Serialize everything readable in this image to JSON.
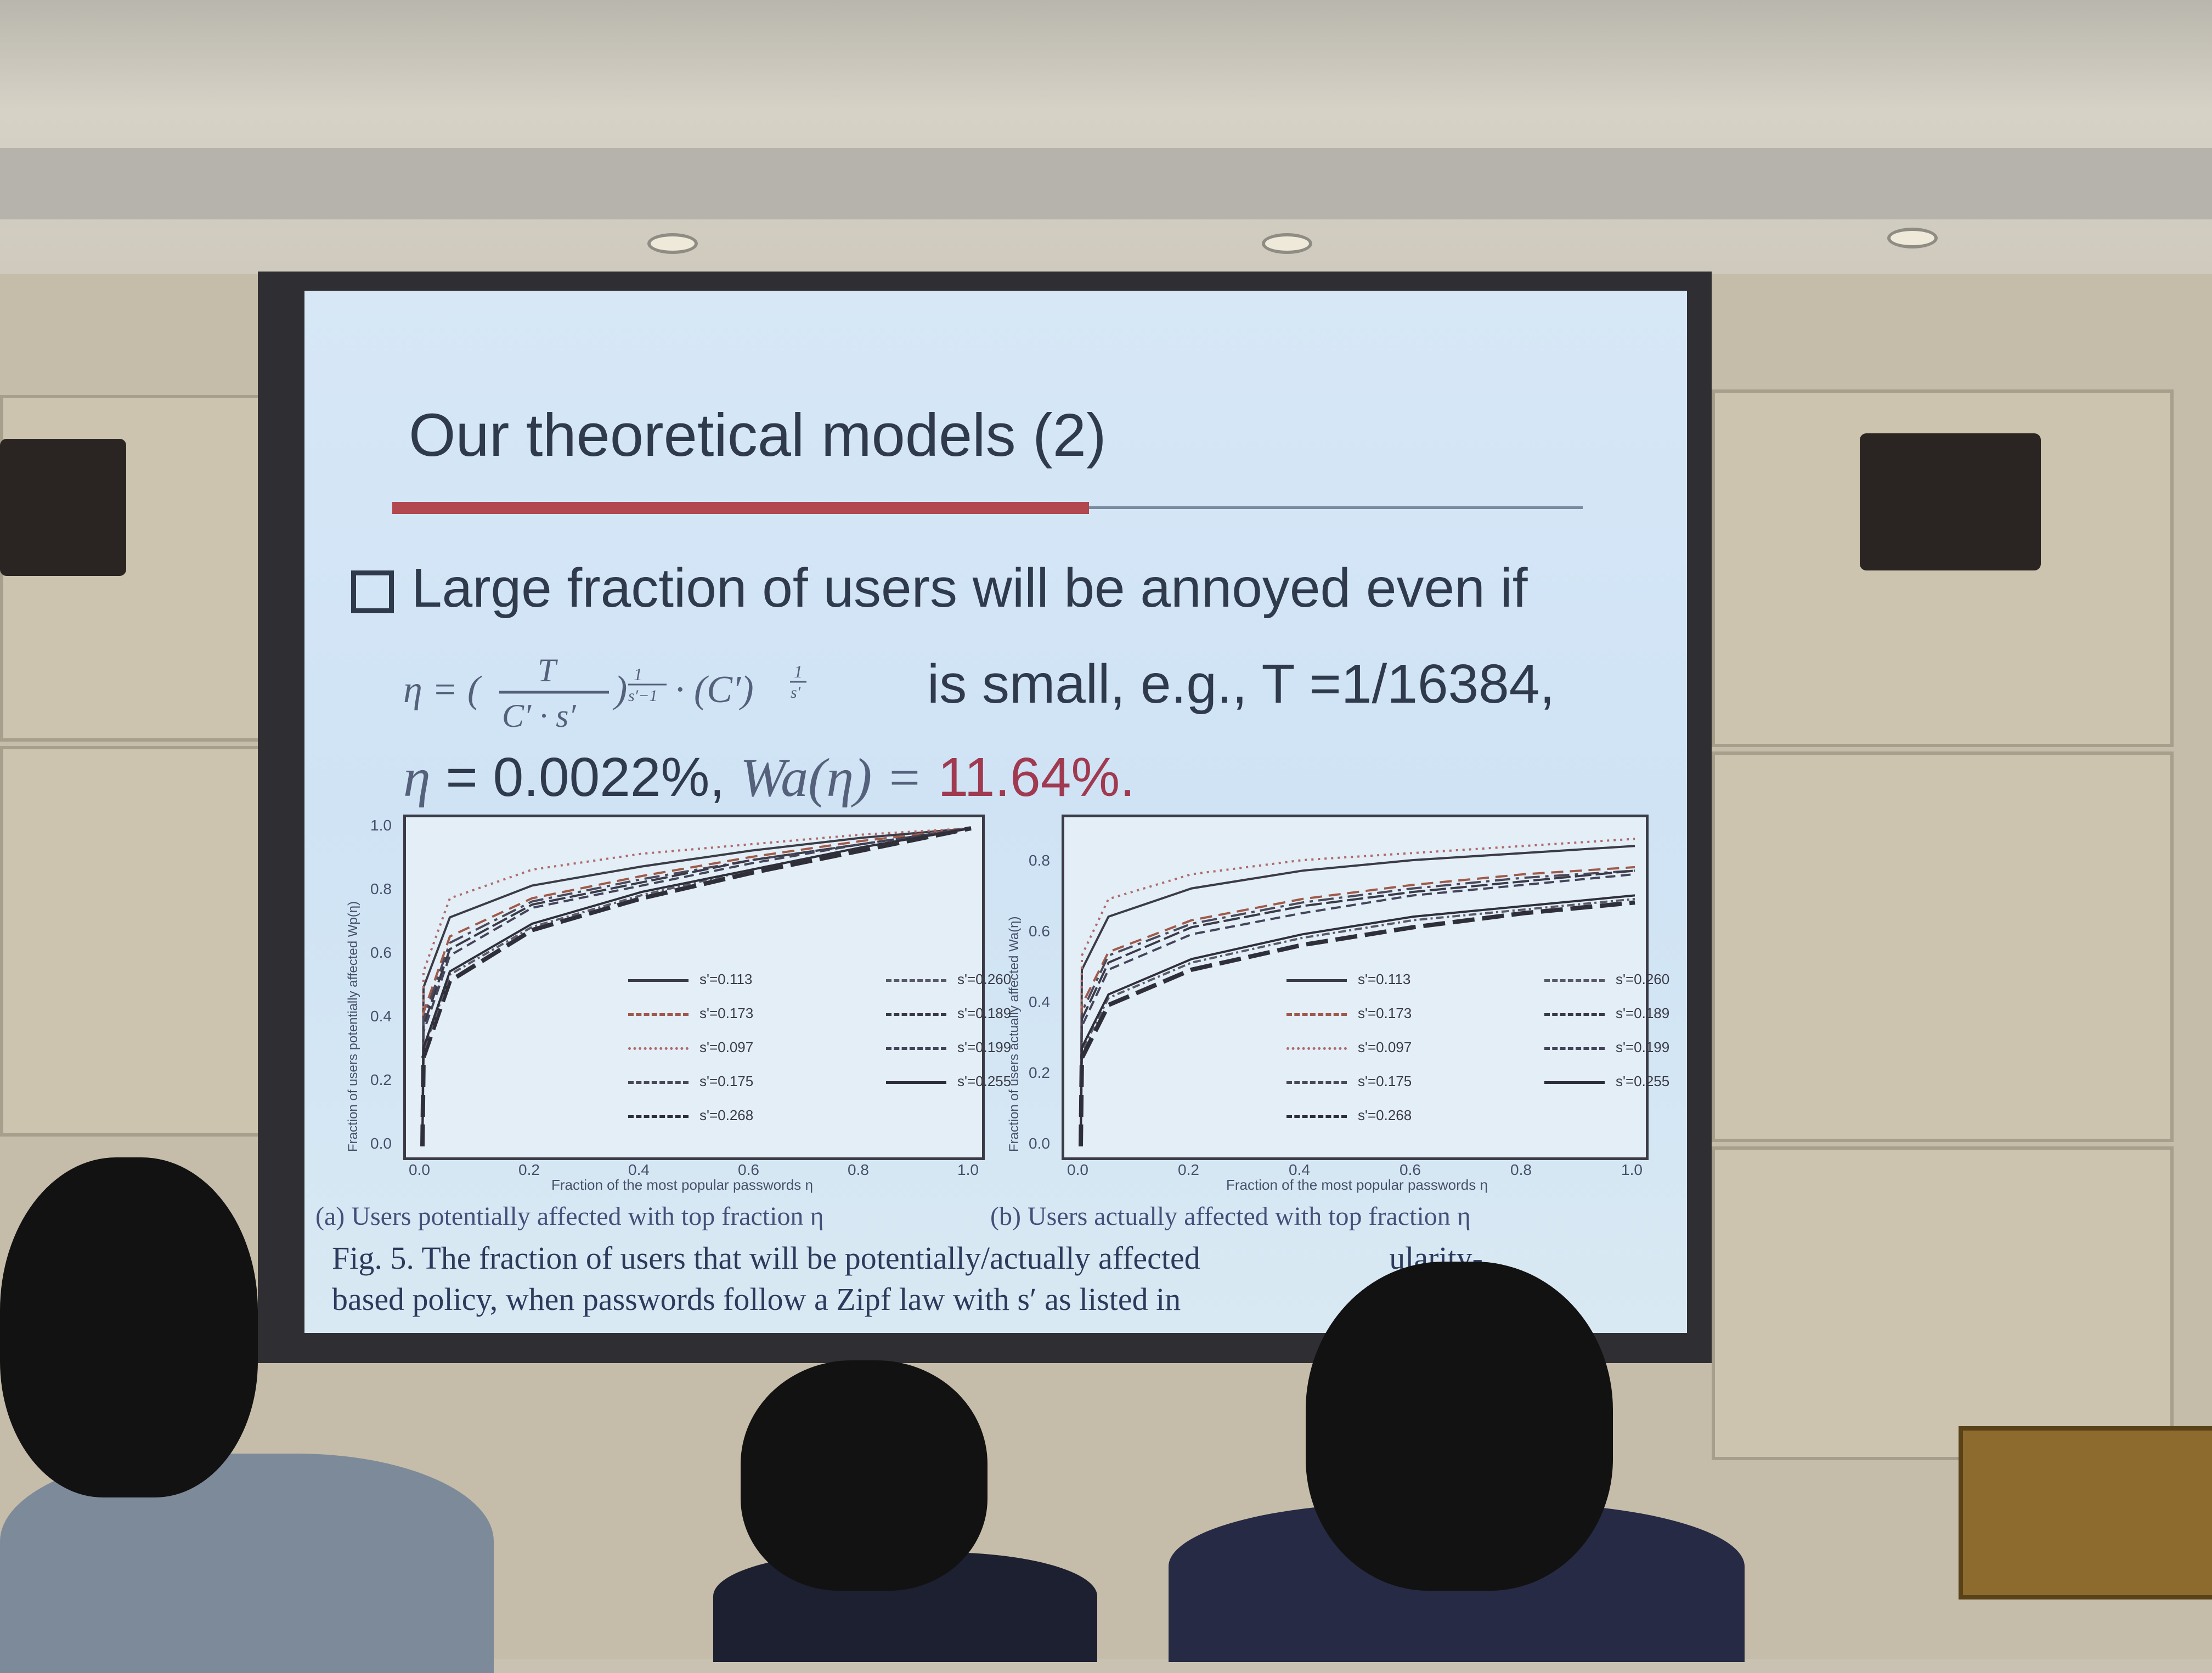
{
  "slide": {
    "title": "Our theoretical models (2)",
    "bullet": "Large fraction of users will be annoyed even if",
    "formula": "η = (T / (C′ · s′))^(1/(s′−1)) · (C′)^(1/s′)",
    "line2": "is small, e.g., T =1/16384,",
    "eta_label": "η",
    "eta_value": "= 0.0022%,",
    "wa_label": "Wa(η) =",
    "wa_value": "11.64%."
  },
  "chart_data": [
    {
      "type": "line",
      "title": "",
      "xlabel": "Fraction of the most popular passwords η",
      "ylabel": "Fraction of users potentially affected Wp(η)",
      "xlim": [
        0,
        1
      ],
      "ylim": [
        0,
        1
      ],
      "x_ticks": [
        "0.0",
        "0.2",
        "0.4",
        "0.6",
        "0.8",
        "1.0"
      ],
      "y_ticks": [
        "0.0",
        "0.2",
        "0.4",
        "0.6",
        "0.8",
        "1.0"
      ],
      "legend_position": "bottom-right",
      "series": [
        {
          "name": "s'=0.113",
          "x": [
            0,
            0.002,
            0.05,
            0.2,
            0.4,
            0.6,
            0.8,
            1.0
          ],
          "values": [
            0,
            0.5,
            0.72,
            0.82,
            0.88,
            0.93,
            0.97,
            1.0
          ]
        },
        {
          "name": "s'=0.173",
          "x": [
            0,
            0.002,
            0.05,
            0.2,
            0.4,
            0.6,
            0.8,
            1.0
          ],
          "values": [
            0,
            0.42,
            0.66,
            0.78,
            0.85,
            0.91,
            0.96,
            1.0
          ]
        },
        {
          "name": "s'=0.097",
          "x": [
            0,
            0.002,
            0.05,
            0.2,
            0.4,
            0.6,
            0.8,
            1.0
          ],
          "values": [
            0,
            0.55,
            0.78,
            0.87,
            0.92,
            0.95,
            0.98,
            1.0
          ]
        },
        {
          "name": "s'=0.175",
          "x": [
            0,
            0.002,
            0.05,
            0.2,
            0.4,
            0.6,
            0.8,
            1.0
          ],
          "values": [
            0,
            0.4,
            0.64,
            0.77,
            0.84,
            0.9,
            0.95,
            1.0
          ]
        },
        {
          "name": "s'=0.268",
          "x": [
            0,
            0.002,
            0.05,
            0.2,
            0.4,
            0.6,
            0.8,
            1.0
          ],
          "values": [
            0,
            0.28,
            0.52,
            0.68,
            0.78,
            0.86,
            0.93,
            1.0
          ]
        },
        {
          "name": "s'=0.260",
          "x": [
            0,
            0.002,
            0.05,
            0.2,
            0.4,
            0.6,
            0.8,
            1.0
          ],
          "values": [
            0,
            0.3,
            0.54,
            0.69,
            0.79,
            0.87,
            0.94,
            1.0
          ]
        },
        {
          "name": "s'=0.189",
          "x": [
            0,
            0.002,
            0.05,
            0.2,
            0.4,
            0.6,
            0.8,
            1.0
          ],
          "values": [
            0,
            0.38,
            0.62,
            0.76,
            0.83,
            0.9,
            0.95,
            1.0
          ]
        },
        {
          "name": "s'=0.199",
          "x": [
            0,
            0.002,
            0.05,
            0.2,
            0.4,
            0.6,
            0.8,
            1.0
          ],
          "values": [
            0,
            0.36,
            0.6,
            0.75,
            0.82,
            0.89,
            0.95,
            1.0
          ]
        },
        {
          "name": "s'=0.255",
          "x": [
            0,
            0.002,
            0.05,
            0.2,
            0.4,
            0.6,
            0.8,
            1.0
          ],
          "values": [
            0,
            0.31,
            0.55,
            0.7,
            0.8,
            0.87,
            0.94,
            1.0
          ]
        }
      ]
    },
    {
      "type": "line",
      "title": "",
      "xlabel": "Fraction of the most popular passwords η",
      "ylabel": "Fraction of users actually affected Wa(η)",
      "xlim": [
        0,
        1
      ],
      "ylim": [
        0,
        0.9
      ],
      "x_ticks": [
        "0.0",
        "0.2",
        "0.4",
        "0.6",
        "0.8",
        "1.0"
      ],
      "y_ticks": [
        "0.0",
        "0.2",
        "0.4",
        "0.6",
        "0.8"
      ],
      "legend_position": "bottom-right",
      "series": [
        {
          "name": "s'=0.113",
          "x": [
            0,
            0.002,
            0.05,
            0.2,
            0.4,
            0.6,
            0.8,
            1.0
          ],
          "values": [
            0,
            0.5,
            0.65,
            0.73,
            0.78,
            0.81,
            0.83,
            0.85
          ]
        },
        {
          "name": "s'=0.173",
          "x": [
            0,
            0.002,
            0.05,
            0.2,
            0.4,
            0.6,
            0.8,
            1.0
          ],
          "values": [
            0,
            0.4,
            0.55,
            0.64,
            0.7,
            0.74,
            0.77,
            0.79
          ]
        },
        {
          "name": "s'=0.097",
          "x": [
            0,
            0.002,
            0.05,
            0.2,
            0.4,
            0.6,
            0.8,
            1.0
          ],
          "values": [
            0,
            0.54,
            0.7,
            0.77,
            0.81,
            0.83,
            0.85,
            0.87
          ]
        },
        {
          "name": "s'=0.175",
          "x": [
            0,
            0.002,
            0.05,
            0.2,
            0.4,
            0.6,
            0.8,
            1.0
          ],
          "values": [
            0,
            0.38,
            0.54,
            0.63,
            0.69,
            0.73,
            0.76,
            0.78
          ]
        },
        {
          "name": "s'=0.268",
          "x": [
            0,
            0.002,
            0.05,
            0.2,
            0.4,
            0.6,
            0.8,
            1.0
          ],
          "values": [
            0,
            0.25,
            0.4,
            0.5,
            0.57,
            0.62,
            0.66,
            0.69
          ]
        },
        {
          "name": "s'=0.260",
          "x": [
            0,
            0.002,
            0.05,
            0.2,
            0.4,
            0.6,
            0.8,
            1.0
          ],
          "values": [
            0,
            0.27,
            0.42,
            0.52,
            0.59,
            0.64,
            0.67,
            0.7
          ]
        },
        {
          "name": "s'=0.189",
          "x": [
            0,
            0.002,
            0.05,
            0.2,
            0.4,
            0.6,
            0.8,
            1.0
          ],
          "values": [
            0,
            0.36,
            0.52,
            0.62,
            0.68,
            0.72,
            0.75,
            0.78
          ]
        },
        {
          "name": "s'=0.199",
          "x": [
            0,
            0.002,
            0.05,
            0.2,
            0.4,
            0.6,
            0.8,
            1.0
          ],
          "values": [
            0,
            0.34,
            0.5,
            0.6,
            0.66,
            0.71,
            0.74,
            0.77
          ]
        },
        {
          "name": "s'=0.255",
          "x": [
            0,
            0.002,
            0.05,
            0.2,
            0.4,
            0.6,
            0.8,
            1.0
          ],
          "values": [
            0,
            0.28,
            0.43,
            0.53,
            0.6,
            0.65,
            0.68,
            0.71
          ]
        }
      ]
    }
  ],
  "captions": {
    "sub_a": "(a) Users potentially affected with top fraction η",
    "sub_b": "(b) Users actually affected with top fraction η",
    "fig_line1": "Fig. 5.  The fraction of users that will be potentially/actually affected",
    "fig_line1_end": "ularity-",
    "fig_line2": "based policy, when passwords follow a Zipf law with s′ as listed in"
  },
  "colors": {
    "slide_bg": "#d3e6f5",
    "title_text": "#2f3a4c",
    "accent_red": "#b2474f",
    "highlight": "#a03a50"
  }
}
